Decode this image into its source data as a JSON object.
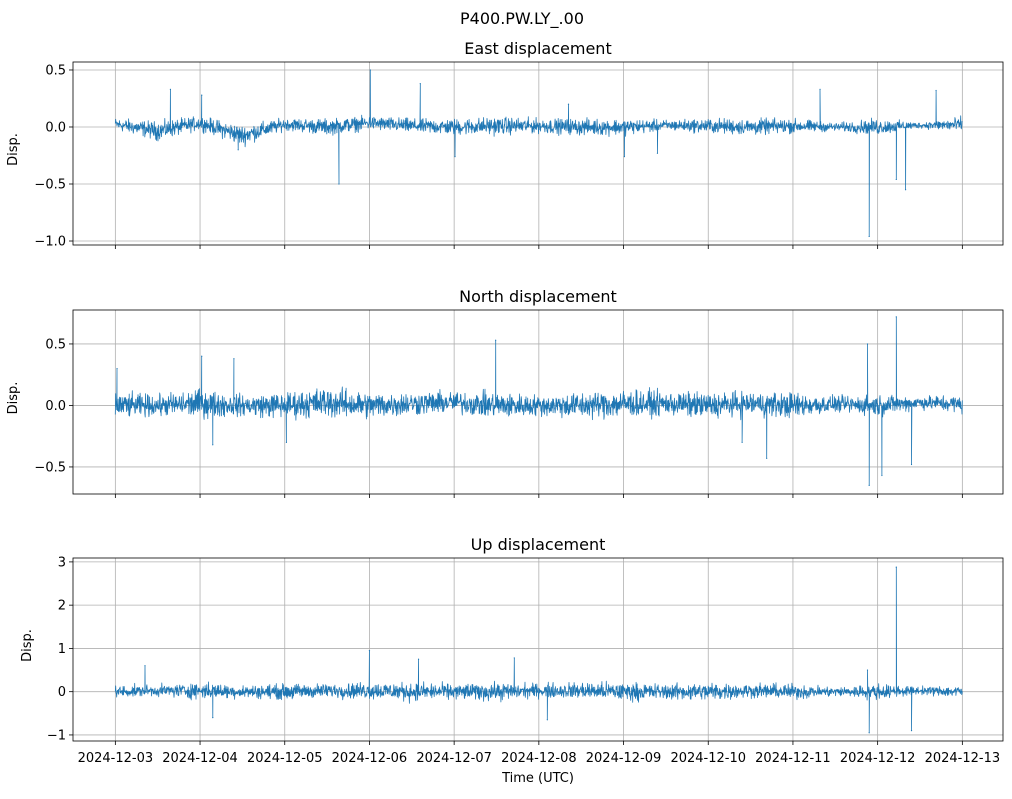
{
  "chart_data": {
    "type": "line",
    "title": "P400.PW.LY_.00",
    "xlabel": "Time (UTC)",
    "x_units": "days since 2024-12-03 00:00",
    "xlim": [
      -0.5,
      10.48
    ],
    "x_ticks": [
      0,
      1,
      2,
      3,
      4,
      5,
      6,
      7,
      8,
      9,
      10
    ],
    "x_tick_labels": [
      "2024-12-03",
      "2024-12-04",
      "2024-12-05",
      "2024-12-06",
      "2024-12-07",
      "2024-12-08",
      "2024-12-09",
      "2024-12-10",
      "2024-12-11",
      "2024-12-12",
      "2024-12-13"
    ],
    "grid": true,
    "line_color": "#1f77b4",
    "subplots": [
      {
        "title": "East displacement",
        "ylabel": "Disp.",
        "ylim": [
          -1.035,
          0.57
        ],
        "y_ticks": [
          0.5,
          0.0,
          -0.5,
          -1.0
        ],
        "y_tick_labels": [
          "0.5",
          "0.0",
          "−0.5",
          "−1.0"
        ],
        "envelope": [
          [
            0,
            -0.05,
            0.1
          ],
          [
            0.5,
            -0.15,
            0.08
          ],
          [
            1,
            -0.05,
            0.12
          ],
          [
            1.5,
            -0.2,
            0.05
          ],
          [
            2,
            -0.05,
            0.1
          ],
          [
            2.5,
            -0.1,
            0.1
          ],
          [
            3,
            -0.05,
            0.12
          ],
          [
            3.5,
            -0.08,
            0.1
          ],
          [
            4,
            -0.1,
            0.1
          ],
          [
            4.5,
            -0.1,
            0.12
          ],
          [
            5,
            -0.08,
            0.1
          ],
          [
            5.5,
            -0.1,
            0.1
          ],
          [
            6,
            -0.1,
            0.1
          ],
          [
            6.5,
            -0.05,
            0.08
          ],
          [
            7,
            -0.08,
            0.1
          ],
          [
            7.5,
            -0.1,
            0.1
          ],
          [
            8,
            -0.08,
            0.1
          ],
          [
            8.5,
            -0.05,
            0.05
          ],
          [
            9,
            -0.1,
            0.1
          ],
          [
            9.5,
            -0.02,
            0.05
          ],
          [
            10,
            -0.08,
            0.12
          ]
        ],
        "spikes": [
          [
            0.65,
            0.33
          ],
          [
            1.02,
            0.28
          ],
          [
            1.45,
            -0.2
          ],
          [
            2.64,
            -0.5
          ],
          [
            3.01,
            0.5
          ],
          [
            3.6,
            0.38
          ],
          [
            4.01,
            -0.26
          ],
          [
            5.35,
            0.2
          ],
          [
            6.01,
            -0.26
          ],
          [
            6.4,
            -0.23
          ],
          [
            8.32,
            0.33
          ],
          [
            8.9,
            -0.96
          ],
          [
            9.22,
            -0.46
          ],
          [
            9.33,
            -0.55
          ],
          [
            9.69,
            0.32
          ]
        ]
      },
      {
        "title": "North displacement",
        "ylabel": "Disp.",
        "ylim": [
          -0.72,
          0.776
        ],
        "y_ticks": [
          0.5,
          0.0,
          -0.5
        ],
        "y_tick_labels": [
          "0.5",
          "0.0",
          "−0.5"
        ],
        "envelope": [
          [
            0,
            -0.15,
            0.15
          ],
          [
            0.5,
            -0.12,
            0.12
          ],
          [
            1,
            -0.15,
            0.18
          ],
          [
            1.5,
            -0.12,
            0.12
          ],
          [
            2,
            -0.15,
            0.15
          ],
          [
            2.5,
            -0.15,
            0.2
          ],
          [
            3,
            -0.15,
            0.15
          ],
          [
            3.5,
            -0.12,
            0.15
          ],
          [
            4,
            -0.1,
            0.15
          ],
          [
            4.5,
            -0.15,
            0.15
          ],
          [
            5,
            -0.12,
            0.12
          ],
          [
            5.5,
            -0.15,
            0.15
          ],
          [
            6,
            -0.15,
            0.18
          ],
          [
            6.5,
            -0.12,
            0.15
          ],
          [
            7,
            -0.15,
            0.15
          ],
          [
            7.5,
            -0.12,
            0.15
          ],
          [
            8,
            -0.15,
            0.15
          ],
          [
            8.5,
            -0.08,
            0.1
          ],
          [
            9,
            -0.12,
            0.12
          ],
          [
            9.5,
            -0.05,
            0.1
          ],
          [
            10,
            -0.1,
            0.12
          ]
        ],
        "spikes": [
          [
            0.02,
            0.3
          ],
          [
            1.02,
            0.4
          ],
          [
            1.15,
            -0.32
          ],
          [
            1.4,
            0.38
          ],
          [
            2.02,
            -0.3
          ],
          [
            4.49,
            0.53
          ],
          [
            7.4,
            -0.3
          ],
          [
            7.69,
            -0.43
          ],
          [
            8.88,
            0.5
          ],
          [
            8.9,
            -0.65
          ],
          [
            9.05,
            -0.57
          ],
          [
            9.22,
            0.72
          ],
          [
            9.4,
            -0.48
          ]
        ]
      },
      {
        "title": "Up displacement",
        "ylabel": "Disp.",
        "ylim": [
          -1.14,
          3.09
        ],
        "y_ticks": [
          3,
          2,
          1,
          0,
          -1
        ],
        "y_tick_labels": [
          "3",
          "2",
          "1",
          "0",
          "−1"
        ],
        "envelope": [
          [
            0,
            -0.2,
            0.2
          ],
          [
            0.5,
            -0.15,
            0.2
          ],
          [
            1,
            -0.25,
            0.3
          ],
          [
            1.5,
            -0.2,
            0.2
          ],
          [
            2,
            -0.25,
            0.25
          ],
          [
            2.5,
            -0.2,
            0.25
          ],
          [
            3,
            -0.25,
            0.3
          ],
          [
            3.5,
            -0.3,
            0.3
          ],
          [
            4,
            -0.25,
            0.25
          ],
          [
            4.5,
            -0.3,
            0.3
          ],
          [
            5,
            -0.2,
            0.25
          ],
          [
            5.5,
            -0.25,
            0.3
          ],
          [
            6,
            -0.3,
            0.3
          ],
          [
            6.5,
            -0.25,
            0.25
          ],
          [
            7,
            -0.3,
            0.3
          ],
          [
            7.5,
            -0.2,
            0.25
          ],
          [
            8,
            -0.25,
            0.25
          ],
          [
            8.5,
            -0.15,
            0.15
          ],
          [
            9,
            -0.25,
            0.25
          ],
          [
            9.5,
            -0.1,
            0.15
          ],
          [
            10,
            -0.2,
            0.2
          ]
        ],
        "spikes": [
          [
            0.35,
            0.6
          ],
          [
            1.15,
            -0.6
          ],
          [
            3.0,
            0.95
          ],
          [
            3.58,
            0.75
          ],
          [
            4.71,
            0.78
          ],
          [
            5.1,
            -0.65
          ],
          [
            8.88,
            0.5
          ],
          [
            8.9,
            -0.95
          ],
          [
            9.22,
            2.88
          ],
          [
            9.4,
            -0.9
          ]
        ]
      }
    ]
  }
}
